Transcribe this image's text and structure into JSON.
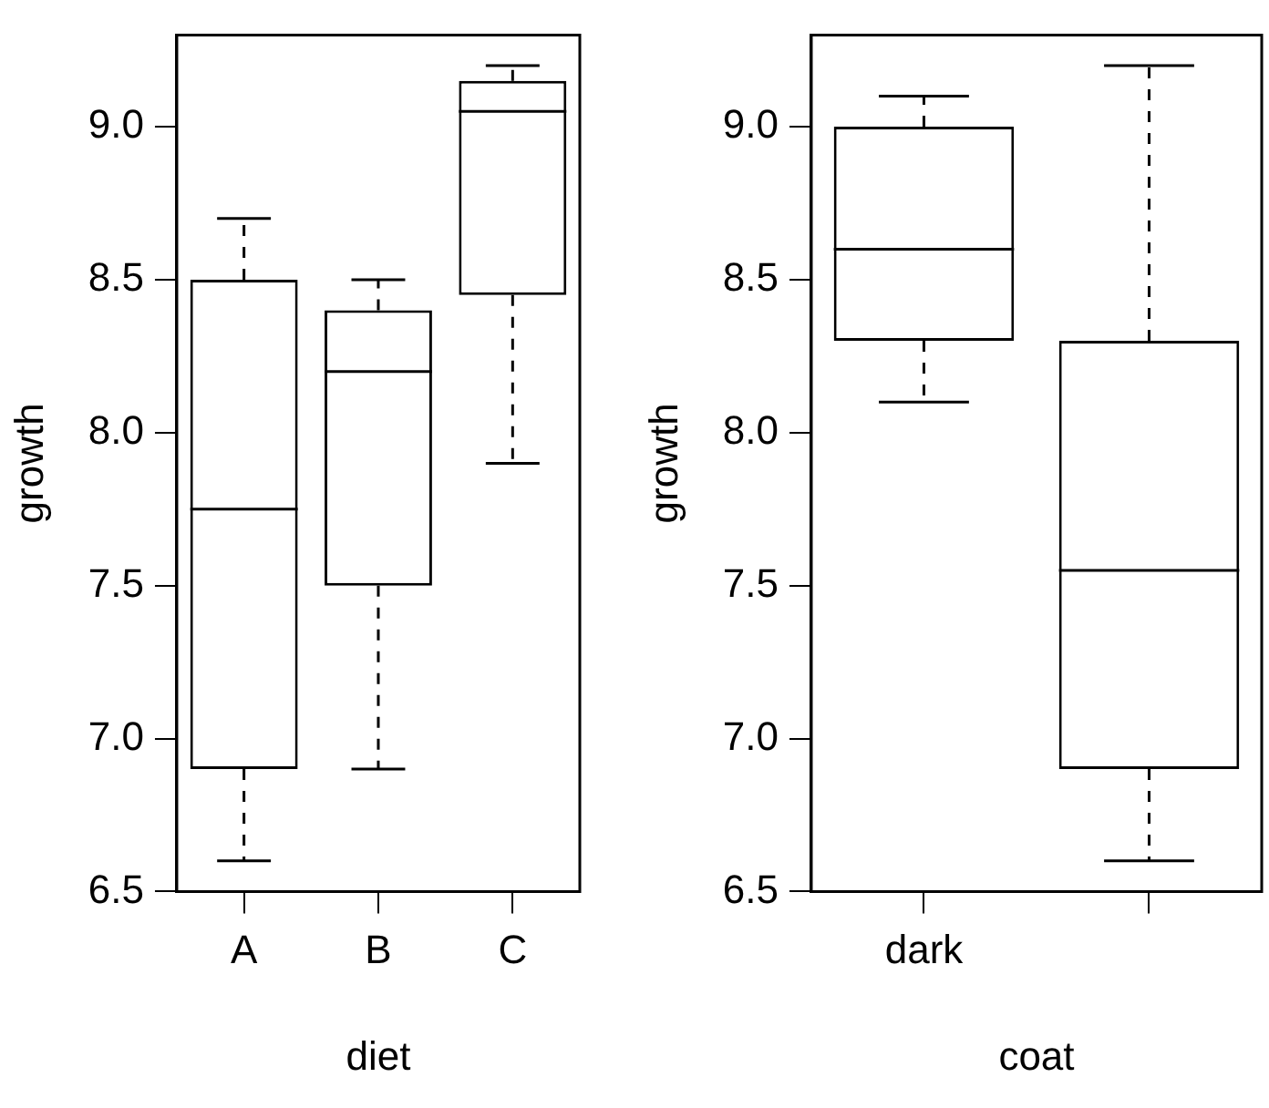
{
  "chart_data": [
    {
      "type": "box",
      "categories": [
        "A",
        "B",
        "C"
      ],
      "xlabel": "diet",
      "ylabel": "growth",
      "ylim": [
        6.5,
        9.3
      ],
      "yticks": [
        6.5,
        {
          "value": 7,
          "label": "7.0"
        },
        7.5,
        {
          "value": 8,
          "label": "8.0"
        },
        8.5,
        {
          "value": 9,
          "label": "9.0"
        }
      ],
      "grid": false,
      "legend": false,
      "boxes": [
        {
          "low": 6.6,
          "q1": 6.9,
          "median": 7.75,
          "q3": 8.5,
          "high": 8.7
        },
        {
          "low": 6.9,
          "q1": 7.5,
          "median": 8.2,
          "q3": 8.4,
          "high": 8.5
        },
        {
          "low": 7.9,
          "q1": 8.45,
          "median": 9.05,
          "q3": 9.15,
          "high": 9.2
        }
      ]
    },
    {
      "type": "box",
      "categories": [
        "dark",
        null
      ],
      "xlabel": "coat",
      "ylabel": "growth",
      "ylim": [
        6.5,
        9.3
      ],
      "yticks": [
        6.5,
        {
          "value": 7,
          "label": "7.0"
        },
        7.5,
        {
          "value": 8,
          "label": "8.0"
        },
        8.5,
        {
          "value": 9,
          "label": "9.0"
        }
      ],
      "grid": false,
      "legend": false,
      "boxes": [
        {
          "low": 8.1,
          "q1": 8.3,
          "median": 8.6,
          "q3": 9.0,
          "high": 9.1
        },
        {
          "low": 6.6,
          "q1": 6.9,
          "median": 7.55,
          "q3": 8.3,
          "high": 9.2
        }
      ]
    }
  ]
}
